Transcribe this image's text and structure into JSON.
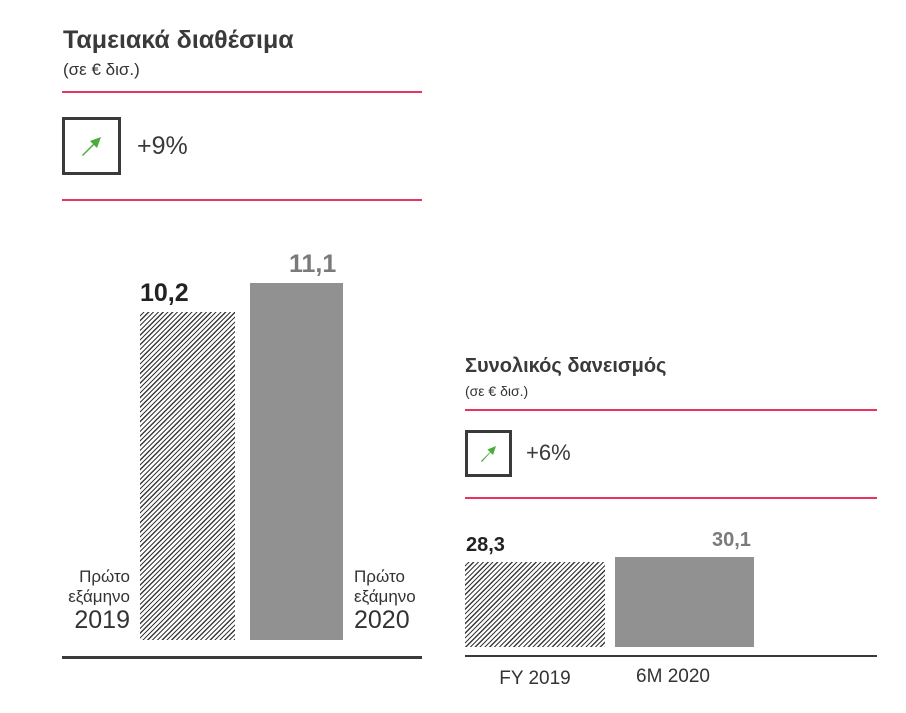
{
  "colors": {
    "accent_rule": "#e8345e",
    "arrow": "#4aac3a",
    "bar_current": "#919191",
    "bar_previous_hatch": "#3a3a3a",
    "text_dark": "#222222",
    "text_gray": "#7a7a7a"
  },
  "chart_data": [
    {
      "type": "bar",
      "title": "Ταμειακά διαθέσιμα",
      "subtitle": "(σε € δισ.)",
      "change": {
        "icon": "arrow-up-right-icon",
        "label": "+9%"
      },
      "categories": [
        {
          "line1": "Πρώτο",
          "line2": "εξάμηνο",
          "year": "2019"
        },
        {
          "line1": "Πρώτο",
          "line2": "εξάμηνο",
          "year": "2020"
        }
      ],
      "values": [
        10.2,
        11.1
      ],
      "value_labels": [
        "10,2",
        "11,1"
      ],
      "bar_styles": [
        "hatched",
        "solid-gray"
      ],
      "ylim": [
        0,
        11.1
      ]
    },
    {
      "type": "bar",
      "title": "Συνολικός δανεισμός",
      "subtitle": "(σε € δισ.)",
      "change": {
        "icon": "arrow-up-right-icon",
        "label": "+6%"
      },
      "categories": [
        "FY 2019",
        "6M 2020"
      ],
      "values": [
        28.3,
        30.1
      ],
      "value_labels": [
        "28,3",
        "30,1"
      ],
      "bar_styles": [
        "hatched",
        "solid-gray"
      ]
    }
  ]
}
